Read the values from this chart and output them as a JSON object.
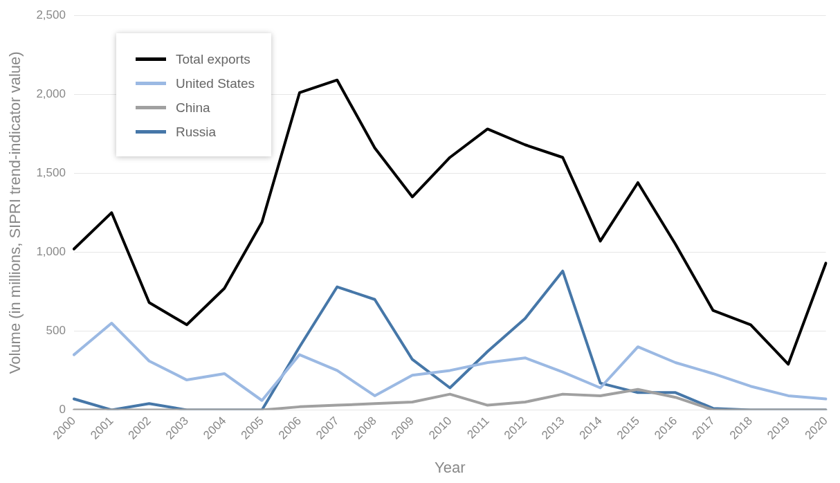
{
  "chart_data": {
    "type": "line",
    "xlabel": "Year",
    "ylabel": "Volume (in millions, SIPRI trend-indicator value)",
    "categories": [
      "2000",
      "2001",
      "2002",
      "2003",
      "2004",
      "2005",
      "2006",
      "2007",
      "2008",
      "2009",
      "2010",
      "2011",
      "2012",
      "2013",
      "2014",
      "2015",
      "2016",
      "2017",
      "2018",
      "2019",
      "2020"
    ],
    "series": [
      {
        "name": "Total exports",
        "color": "#000000",
        "values": [
          1020,
          1250,
          680,
          540,
          770,
          1190,
          2010,
          2090,
          1660,
          1350,
          1600,
          1780,
          1680,
          1600,
          1070,
          1440,
          1050,
          630,
          540,
          290,
          930
        ]
      },
      {
        "name": "United States",
        "color": "#9bb9e3",
        "values": [
          350,
          550,
          310,
          190,
          230,
          60,
          350,
          250,
          90,
          220,
          250,
          300,
          330,
          240,
          140,
          400,
          300,
          230,
          150,
          90,
          70
        ]
      },
      {
        "name": "China",
        "color": "#a0a0a0",
        "values": [
          0,
          0,
          0,
          0,
          0,
          0,
          20,
          30,
          40,
          50,
          100,
          30,
          50,
          100,
          90,
          130,
          80,
          0,
          0,
          0,
          0
        ]
      },
      {
        "name": "Russia",
        "color": "#4677a8",
        "values": [
          70,
          0,
          40,
          0,
          0,
          0,
          400,
          780,
          700,
          320,
          140,
          370,
          580,
          880,
          170,
          110,
          110,
          10,
          0,
          0,
          0
        ]
      }
    ],
    "ylim": [
      0,
      2500
    ],
    "yticks": [
      {
        "value": 0,
        "label": "0"
      },
      {
        "value": 500,
        "label": "500"
      },
      {
        "value": 1000,
        "label": "1,000"
      },
      {
        "value": 1500,
        "label": "1,500"
      },
      {
        "value": 2000,
        "label": "2,000"
      },
      {
        "value": 2500,
        "label": "2,500"
      }
    ],
    "grid": "y",
    "legend": "top left",
    "marker": "none",
    "line_style": "solid"
  }
}
